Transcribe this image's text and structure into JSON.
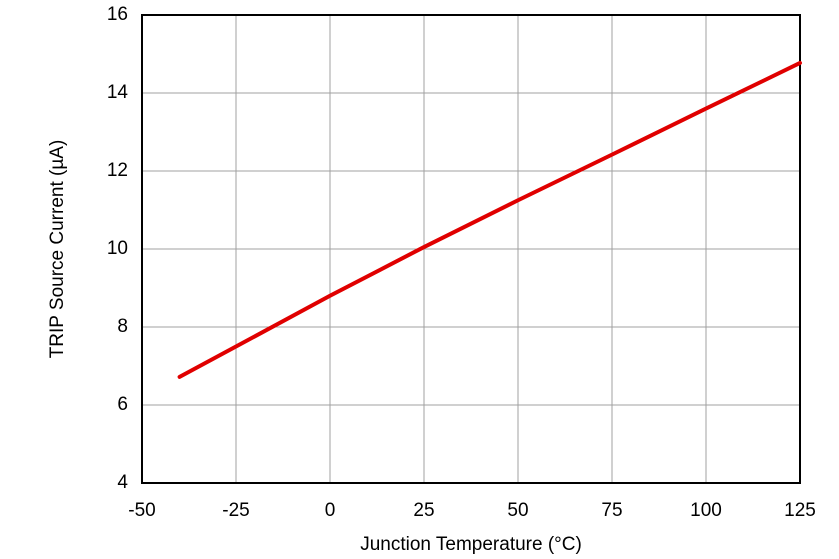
{
  "chart_data": {
    "type": "line",
    "x_label": "Junction Temperature (°C)",
    "y_label": "TRIP Source Current (µA)",
    "x": [
      -40,
      -25,
      0,
      25,
      50,
      75,
      100,
      125
    ],
    "series": [
      {
        "color": "#e00000",
        "values": [
          6.72,
          7.5,
          8.8,
          10.05,
          11.25,
          12.42,
          13.6,
          14.77
        ]
      }
    ],
    "xlim": [
      -50,
      125
    ],
    "xticks": [
      -50,
      -25,
      0,
      25,
      50,
      75,
      100,
      125
    ],
    "ylim": [
      4,
      16
    ],
    "yticks": [
      4,
      6,
      8,
      10,
      12,
      14,
      16
    ],
    "grid": true
  }
}
